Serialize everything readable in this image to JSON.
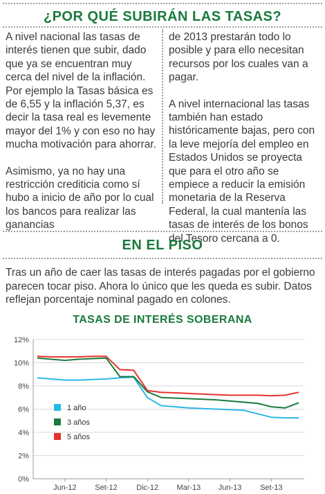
{
  "section1": {
    "title": "¿POR QUÉ SUBIRÁN LAS TASAS?",
    "left_paragraphs": [
      "A nivel nacional las tasas de interés tienen que subir, dado que ya se encuentran muy cerca del nivel de la inflación. Por ejemplo la Tasas básica es de 6,55 y la inflación 5,37, es decir la tasa real es levemente mayor del 1% y con eso no hay mucha motivación para ahorrar.",
      "Asimismo, ya no hay una restricción crediticia como sí hubo a inicio de año por lo cual los bancos para realizar las ganancias"
    ],
    "right_paragraphs": [
      "de 2013 prestarán todo lo posible y para ello necesitan recursos por los cuales van a pagar.",
      "A nivel internacional las tasas también han estado históricamente bajas, pero con la leve mejoría del empleo en Estados Unidos se proyecta que para el otro año se empiece a reducir la emisión monetaria de la Reserva Federal, la cual mantenía las tasas de interés de los bonos del Tesoro cercana a 0."
    ]
  },
  "section2": {
    "title": "EN EL PISO",
    "intro": "Tras un año de caer las tasas de interés pagadas por el gobierno parecen tocar piso. Ahora lo único que les queda es subir. Datos reflejan porcentaje nominal pagado en colones."
  },
  "chart_data": {
    "type": "line",
    "title": "TASAS DE INTERÉS SOBERANA",
    "x_tick_labels": [
      "Jun-12",
      "Set-12",
      "Dic-12",
      "Mar-13",
      "Jun-13",
      "Set-13"
    ],
    "x_months": [
      "2012-04",
      "2012-05",
      "2012-06",
      "2012-07",
      "2012-08",
      "2012-09",
      "2012-10",
      "2012-11",
      "2012-12",
      "2013-01",
      "2013-02",
      "2013-03",
      "2013-04",
      "2013-05",
      "2013-06",
      "2013-07",
      "2013-08",
      "2013-09",
      "2013-10",
      "2013-11"
    ],
    "ylim": [
      0,
      12
    ],
    "y_ticks": [
      "0%",
      "2%",
      "4%",
      "6%",
      "8%",
      "10%",
      "12%"
    ],
    "grid": "horizontal",
    "legend_position": "bottom-left",
    "series": [
      {
        "name": "1 año",
        "color": "#29b8e5",
        "values": [
          8.7,
          8.6,
          8.5,
          8.5,
          8.55,
          8.6,
          8.7,
          8.75,
          7.0,
          6.3,
          6.2,
          6.1,
          6.05,
          6.0,
          5.95,
          5.9,
          5.6,
          5.3,
          5.25,
          5.25
        ]
      },
      {
        "name": "3 años",
        "color": "#1a7a3c",
        "values": [
          10.4,
          10.3,
          10.2,
          10.3,
          10.35,
          10.4,
          8.8,
          8.8,
          7.5,
          7.0,
          6.95,
          6.9,
          6.85,
          6.8,
          6.7,
          6.6,
          6.5,
          6.2,
          6.1,
          6.55
        ]
      },
      {
        "name": "5 años",
        "color": "#e5322d",
        "values": [
          10.55,
          10.5,
          10.5,
          10.5,
          10.55,
          10.55,
          9.4,
          9.35,
          7.6,
          7.45,
          7.4,
          7.35,
          7.3,
          7.25,
          7.2,
          7.2,
          7.2,
          7.15,
          7.2,
          7.45
        ]
      }
    ]
  }
}
